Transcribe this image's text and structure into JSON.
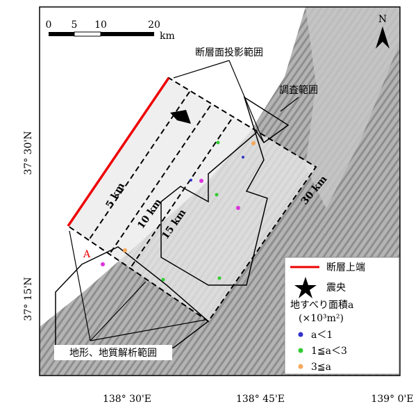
{
  "scale_bar": {
    "ticks": [
      "0",
      "5",
      "10",
      "20"
    ],
    "unit": "km"
  },
  "north_label": "N",
  "callouts": {
    "fault_projection": "断層面投影範囲",
    "survey_area": "調査範囲",
    "analysis_area": "地形、地質解析範囲",
    "point_a": "A"
  },
  "depth_labels": [
    "5 km",
    "10 km",
    "15 km",
    "30 km"
  ],
  "legend": {
    "fault_top": "断層上端",
    "epicenter": "震央",
    "landslide_title": "地すべり面積a",
    "landslide_unit": "(×10³m²)",
    "small": "a＜1",
    "medium": "1≦a＜3",
    "large": "3≦a"
  },
  "axes": {
    "lat": [
      "37° 30'N",
      "37° 15'N"
    ],
    "lon": [
      "138° 30'E",
      "138° 45'E",
      "139° 0'E"
    ]
  }
}
